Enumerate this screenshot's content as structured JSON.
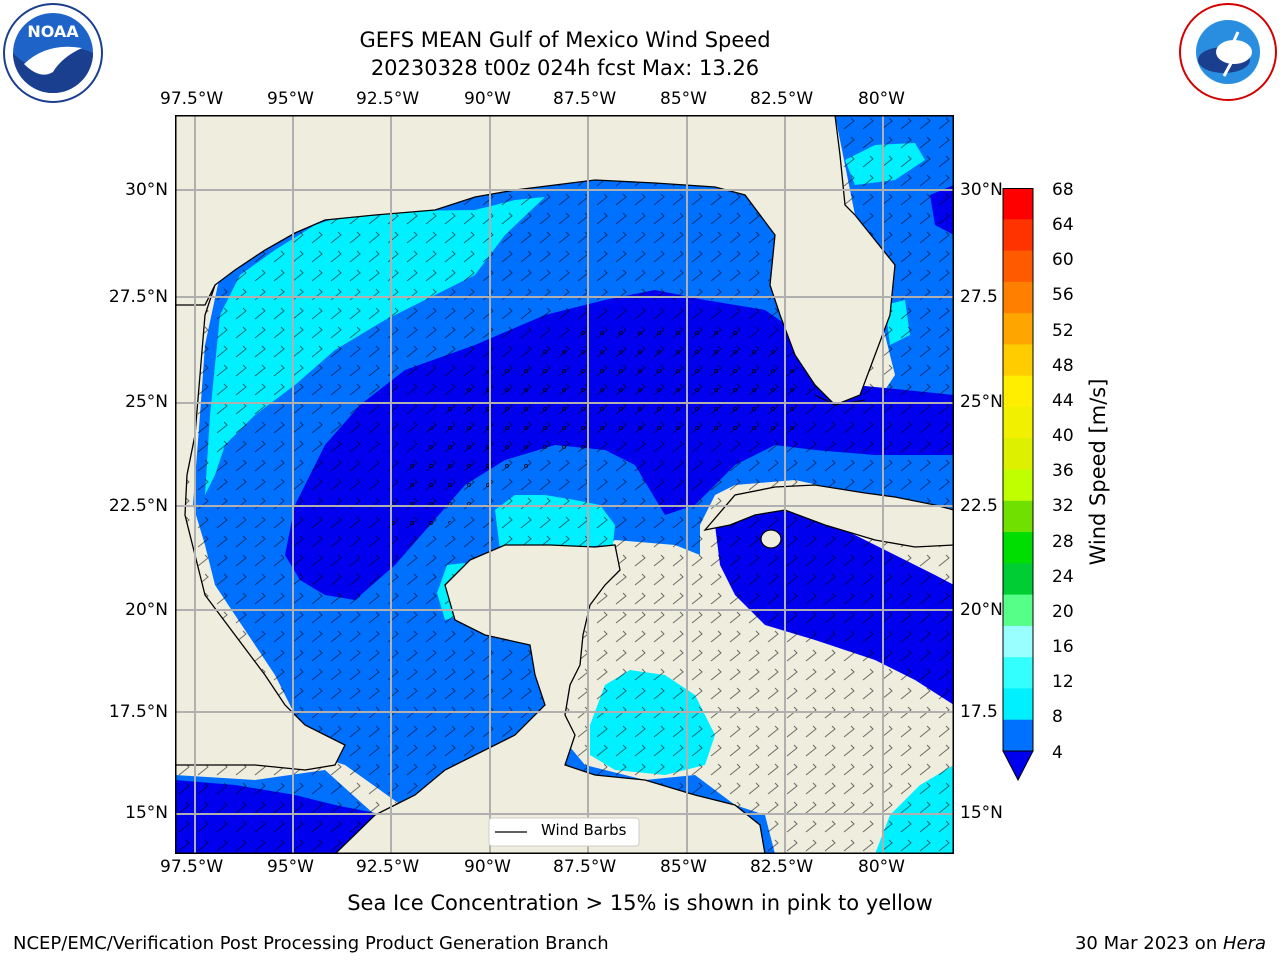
{
  "header": {
    "title_line1": "GEFS MEAN Gulf of Mexico Wind Speed",
    "title_line2": "20230328 t00z 024h fcst   Max: 13.26"
  },
  "logos": {
    "left": {
      "text": "NOAA",
      "ring_text": "NATIONAL OCEANIC AND ATMOSPHERIC ADMINISTRATION · U.S. DEPARTMENT OF COMMERCE"
    },
    "right": {
      "ring_text": "NATIONAL WEATHER SERVICE"
    }
  },
  "map": {
    "lon_ticks": [
      "97.5°W",
      "95°W",
      "92.5°W",
      "90°W",
      "87.5°W",
      "85°W",
      "82.5°W",
      "80°W"
    ],
    "lat_ticks_left": [
      "30°N",
      "27.5°N",
      "25°N",
      "22.5°N",
      "20°N",
      "17.5°N",
      "15°N"
    ],
    "lat_ticks_right": [
      "30°N",
      "27.5",
      "25°N",
      "22.5",
      "20°N",
      "17.5",
      "15°N"
    ],
    "legend_label": "Wind Barbs"
  },
  "colorbar": {
    "label": "Wind Speed [m/s]",
    "ticks": [
      "68",
      "64",
      "60",
      "56",
      "52",
      "48",
      "44",
      "40",
      "36",
      "32",
      "28",
      "24",
      "20",
      "16",
      "12",
      "8",
      "4"
    ],
    "colors": [
      "#ff0000",
      "#ff3300",
      "#ff5a00",
      "#ff8000",
      "#ffa500",
      "#ffcc00",
      "#ffee00",
      "#f0f000",
      "#ddf000",
      "#c0ff00",
      "#70e000",
      "#00dd00",
      "#00cc33",
      "#55ff88",
      "#99ffff",
      "#33ffff",
      "#00f0ff",
      "#0070ff",
      "#0000ee"
    ]
  },
  "footer": {
    "note": "Sea Ice Concentration > 15% is shown in pink to yellow",
    "left": "NCEP/EMC/Verification Post Processing Product Generation Branch",
    "right_prefix": "30 Mar 2023 on ",
    "right_host": "Hera"
  }
}
